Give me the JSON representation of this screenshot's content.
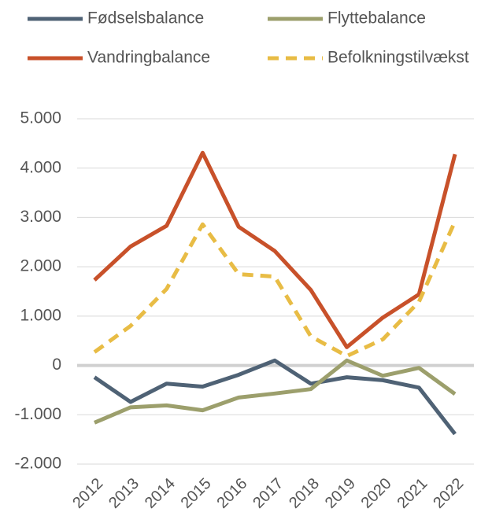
{
  "chart_data": {
    "type": "line",
    "categories": [
      "2012",
      "2013",
      "2014",
      "2015",
      "2016",
      "2017",
      "2018",
      "2019",
      "2020",
      "2021",
      "2022"
    ],
    "series": [
      {
        "name": "Fødselsbalance",
        "color": "#4f6275",
        "values": [
          -240,
          -740,
          -370,
          -430,
          -190,
          100,
          -370,
          -240,
          -300,
          -450,
          -1390
        ]
      },
      {
        "name": "Flyttebalance",
        "color": "#9c9f6c",
        "values": [
          -1160,
          -850,
          -810,
          -910,
          -650,
          -570,
          -480,
          100,
          -210,
          -50,
          -580
        ]
      },
      {
        "name": "Vandringbalance",
        "color": "#c8512a",
        "values": [
          1730,
          2410,
          2830,
          4310,
          2810,
          2320,
          1530,
          370,
          970,
          1440,
          4280
        ]
      },
      {
        "name": "Befolkningstilvækst",
        "color": "#e8bc45",
        "dashed": true,
        "values": [
          270,
          800,
          1550,
          2860,
          1850,
          1800,
          590,
          190,
          530,
          1290,
          2920
        ]
      }
    ],
    "ylim": [
      -2000,
      5000
    ],
    "yticks": [
      {
        "value": -2000,
        "label": "-2.000"
      },
      {
        "value": -1000,
        "label": "-1.000"
      },
      0,
      {
        "value": 1000,
        "label": "1.000"
      },
      {
        "value": 2000,
        "label": "2.000"
      },
      {
        "value": 3000,
        "label": "3.000"
      },
      {
        "value": 4000,
        "label": "4.000"
      },
      {
        "value": 5000,
        "label": "5.000"
      }
    ],
    "grid": true,
    "legend": "top"
  }
}
